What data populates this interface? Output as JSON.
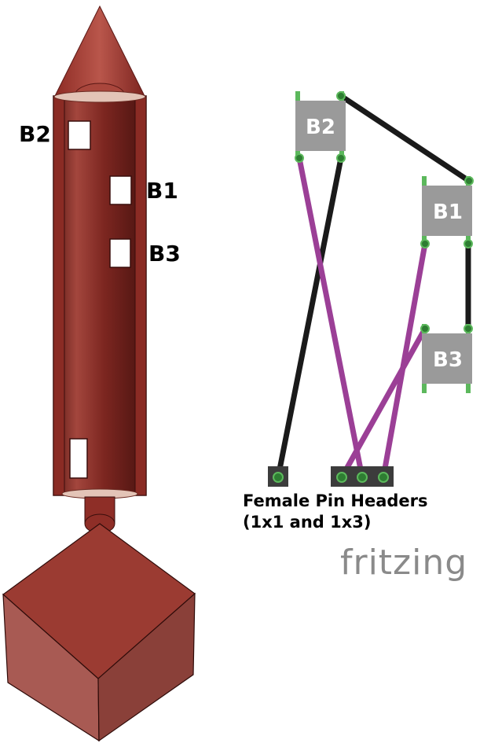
{
  "rocket_labels": {
    "b2": "B2",
    "b1": "B1",
    "b3": "B3"
  },
  "wiring": {
    "buttons": [
      {
        "id": "b2",
        "label": "B2"
      },
      {
        "id": "b1",
        "label": "B1"
      },
      {
        "id": "b3",
        "label": "B3"
      }
    ],
    "header_caption_line1": "Female Pin Headers",
    "header_caption_line2": "(1x1 and 1x3)"
  },
  "brand": "fritzing",
  "colors": {
    "rocket_body": "#8c2a24",
    "button_fill": "#9a9a9a",
    "pin_green": "#5cb85c",
    "wire_black": "#1a1a1a",
    "wire_purple": "#9b3f96",
    "header_fill": "#3c3c3c"
  }
}
